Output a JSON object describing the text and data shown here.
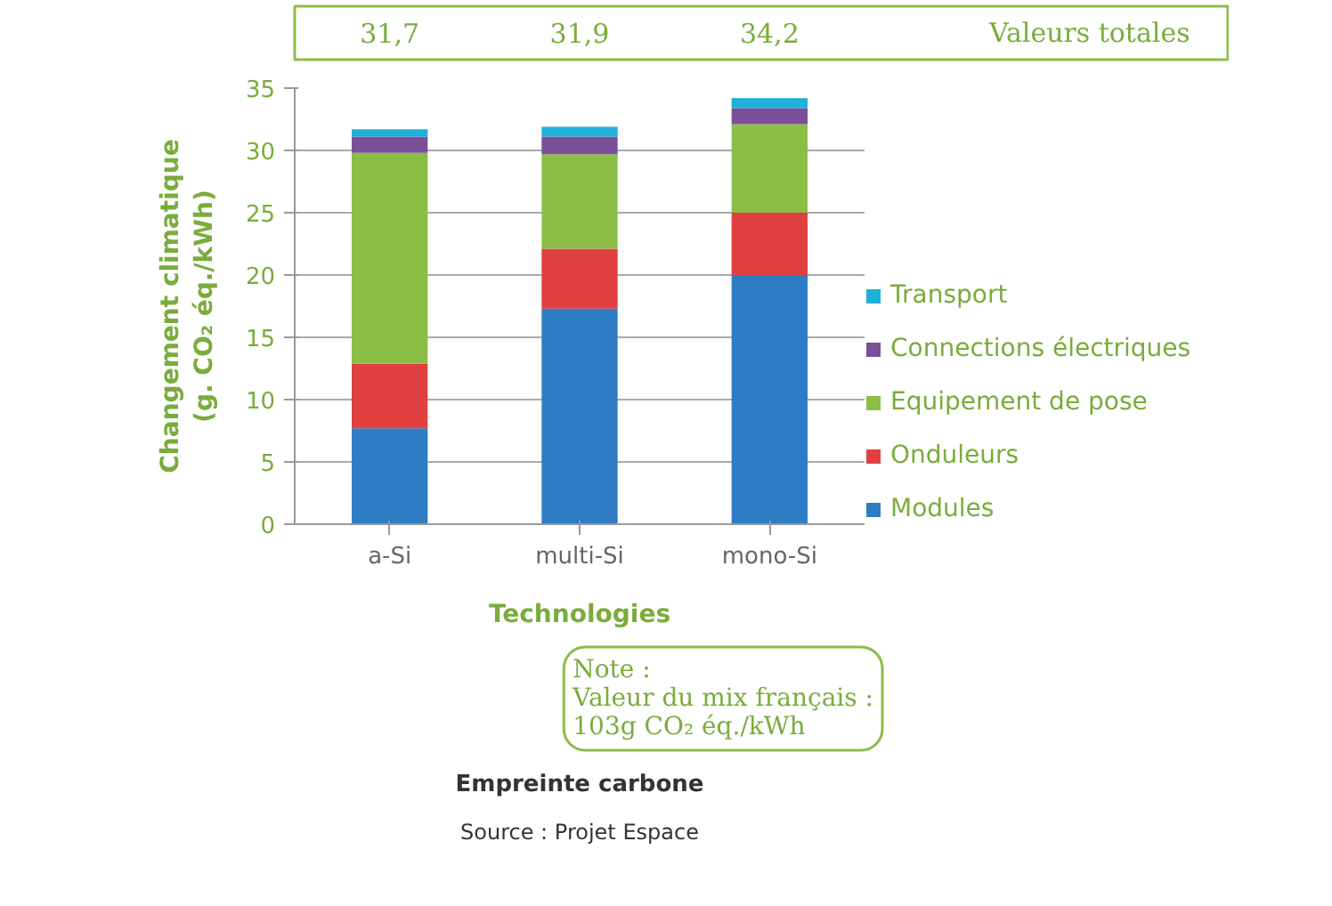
{
  "chart_data": {
    "type": "bar",
    "stacked": true,
    "title": "Empreinte carbone",
    "xlabel": "Technologies",
    "ylabel": "Changement climatique\n(g. CO₂ éq./kWh)",
    "categories": [
      "a-Si",
      "multi-Si",
      "mono-Si"
    ],
    "series": [
      {
        "name": "Modules",
        "color": "#2e7cc4",
        "values": [
          7.7,
          17.3,
          20.0
        ]
      },
      {
        "name": "Onduleurs",
        "color": "#e04040",
        "values": [
          5.2,
          4.8,
          5.0
        ]
      },
      {
        "name": "Equipement de pose",
        "color": "#8cbd45",
        "values": [
          16.9,
          7.6,
          7.1
        ]
      },
      {
        "name": "Connections électriques",
        "color": "#7a4f9a",
        "values": [
          1.3,
          1.4,
          1.3
        ]
      },
      {
        "name": "Transport",
        "color": "#1eb0d8",
        "values": [
          0.6,
          0.8,
          0.8
        ]
      }
    ],
    "totals": [
      "31,7",
      "31,9",
      "34,2"
    ],
    "annotations": [
      "Valeurs totales",
      "Note :\nValeur du mix français :\n103g CO₂ éq./kWh",
      "Source : Projet Espace"
    ],
    "ylim": [
      0,
      35
    ],
    "yticks": [
      0,
      5,
      10,
      15,
      20,
      25,
      30,
      35
    ],
    "grid": "y",
    "legend": "right"
  }
}
